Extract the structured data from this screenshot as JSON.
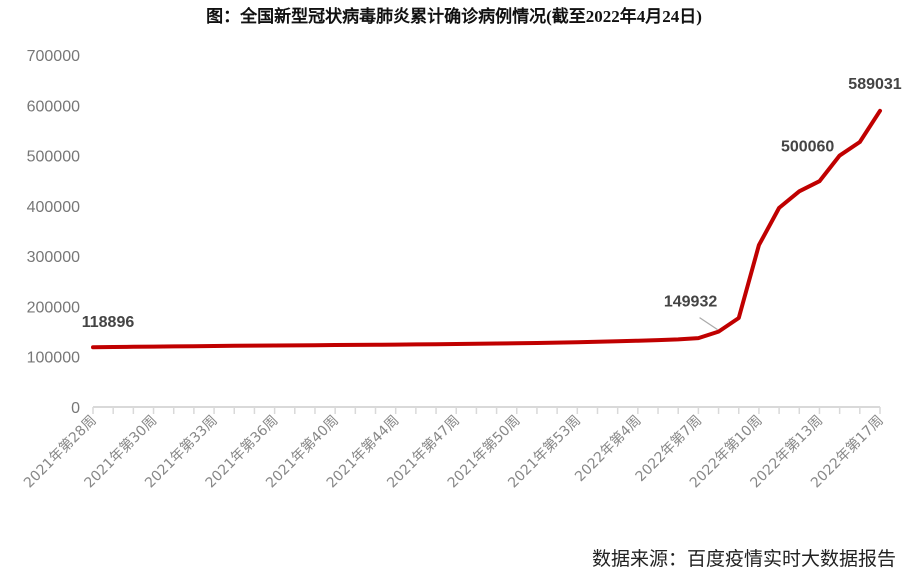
{
  "chart_data": {
    "type": "line",
    "title": "图：全国新型冠状病毒肺炎累计确诊病例情况(截至2022年4月24日)",
    "xlabel": "",
    "ylabel": "",
    "ylim": [
      0,
      700000
    ],
    "yticks": [
      0,
      100000,
      200000,
      300000,
      400000,
      500000,
      600000,
      700000
    ],
    "x_tick_labels": [
      "2021年第28周",
      "2021年第30周",
      "2021年第33周",
      "2021年第36周",
      "2021年第40周",
      "2021年第44周",
      "2021年第47周",
      "2021年第50周",
      "2021年第53周",
      "2022年第4周",
      "2022年第7周",
      "2022年第10周",
      "2022年第13周",
      "2022年第17周"
    ],
    "label_every": 3,
    "values": [
      118896,
      119300,
      119700,
      120100,
      120500,
      120900,
      121300,
      121700,
      122000,
      122300,
      122600,
      122900,
      123200,
      123500,
      123800,
      124100,
      124500,
      124900,
      125300,
      125700,
      126200,
      126700,
      127300,
      128000,
      128800,
      129700,
      130700,
      131800,
      133100,
      134500,
      137000,
      149932,
      177000,
      322000,
      396000,
      429000,
      449000,
      500060,
      527000,
      589031
    ],
    "data_labels": [
      {
        "index": 0,
        "text": "118896"
      },
      {
        "index": 31,
        "text": "149932"
      },
      {
        "index": 37,
        "text": "500060"
      },
      {
        "index": 39,
        "text": "589031"
      }
    ],
    "line_color": "#c00000",
    "grid": false,
    "legend": "none"
  },
  "source": "数据来源：百度疫情实时大数据报告"
}
